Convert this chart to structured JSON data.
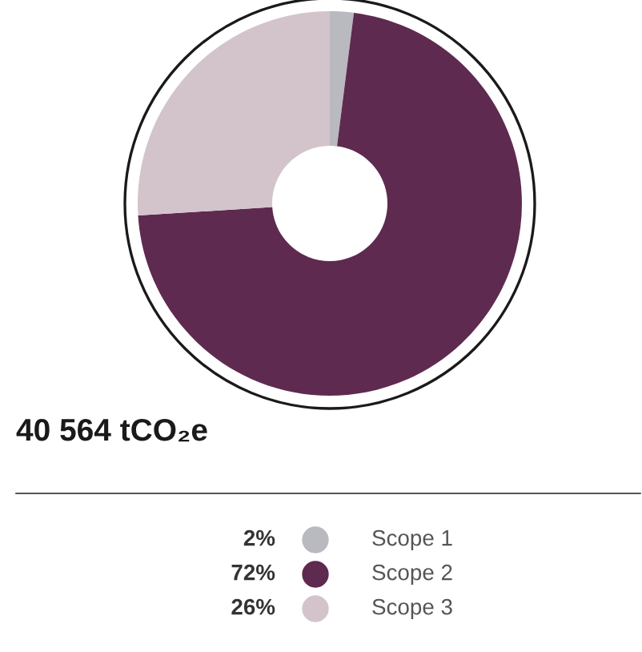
{
  "chart_data": {
    "type": "donut",
    "title": "40 564 tCO₂e",
    "categories": [
      "Scope 1",
      "Scope 2",
      "Scope 3"
    ],
    "values": [
      2,
      72,
      26
    ],
    "value_labels": [
      "2%",
      "72%",
      "26%"
    ],
    "colors": [
      "#b9b9c0",
      "#5e2a4f",
      "#d3c4cc"
    ],
    "legend": "bottom"
  }
}
